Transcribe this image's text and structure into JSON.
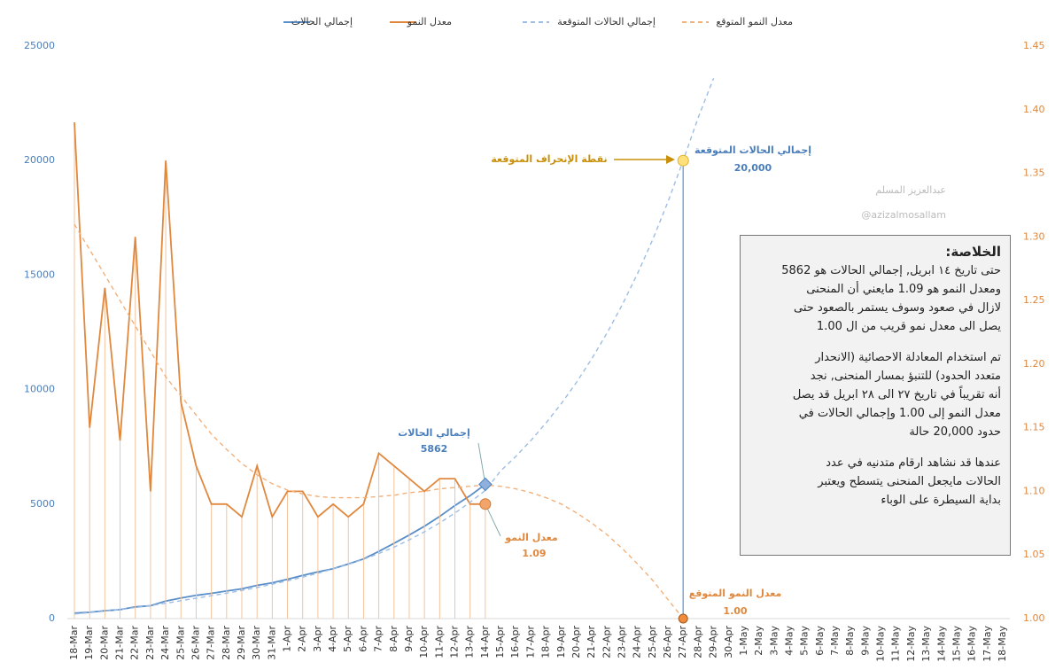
{
  "chart_data": {
    "type": "line",
    "legend": [
      "إجمالي الحالات",
      "معدل النمو",
      "إجمالي الحالات المتوقعة",
      "معدل النمو المتوقع"
    ],
    "categories": [
      "18-Mar",
      "19-Mar",
      "20-Mar",
      "21-Mar",
      "22-Mar",
      "23-Mar",
      "24-Mar",
      "25-Mar",
      "26-Mar",
      "27-Mar",
      "28-Mar",
      "29-Mar",
      "30-Mar",
      "31-Mar",
      "1-Apr",
      "2-Apr",
      "3-Apr",
      "4-Apr",
      "5-Apr",
      "6-Apr",
      "7-Apr",
      "8-Apr",
      "9-Apr",
      "10-Apr",
      "11-Apr",
      "12-Apr",
      "13-Apr",
      "14-Apr",
      "15-Apr",
      "16-Apr",
      "17-Apr",
      "18-Apr",
      "19-Apr",
      "20-Apr",
      "21-Apr",
      "22-Apr",
      "23-Apr",
      "24-Apr",
      "25-Apr",
      "26-Apr",
      "27-Apr",
      "28-Apr",
      "29-Apr",
      "30-Apr",
      "1-May",
      "2-May",
      "3-May",
      "4-May",
      "5-May",
      "6-May",
      "7-May",
      "8-May",
      "9-May",
      "10-May",
      "11-May",
      "12-May",
      "13-May",
      "14-May",
      "15-May",
      "16-May",
      "17-May",
      "18-May"
    ],
    "series": [
      {
        "name": "إجمالي الحالات",
        "color": "#5b8fc9",
        "axis": "y",
        "dash": false,
        "values": [
          240,
          274,
          344,
          392,
          511,
          562,
          767,
          900,
          1012,
          1104,
          1203,
          1299,
          1453,
          1563,
          1720,
          1885,
          2039,
          2179,
          2385,
          2605,
          2932,
          3287,
          3651,
          4033,
          4462,
          4934,
          5369,
          5862,
          null,
          null,
          null,
          null,
          null,
          null,
          null,
          null,
          null,
          null,
          null,
          null,
          null,
          null,
          null,
          null,
          null,
          null,
          null,
          null,
          null,
          null,
          null,
          null,
          null,
          null,
          null,
          null,
          null,
          null,
          null,
          null,
          null,
          null
        ]
      },
      {
        "name": "معدل النمو",
        "color": "#e0883e",
        "axis": "y2",
        "dash": false,
        "drop_lines": true,
        "values": [
          1.39,
          1.15,
          1.26,
          1.14,
          1.3,
          1.1,
          1.36,
          1.17,
          1.12,
          1.09,
          1.09,
          1.08,
          1.12,
          1.08,
          1.1,
          1.1,
          1.08,
          1.09,
          1.08,
          1.09,
          1.13,
          1.12,
          1.11,
          1.1,
          1.11,
          1.11,
          1.09,
          1.09,
          null,
          null,
          null,
          null,
          null,
          null,
          null,
          null,
          null,
          null,
          null,
          null,
          null,
          null,
          null,
          null,
          null,
          null,
          null,
          null,
          null,
          null,
          null,
          null,
          null,
          null,
          null,
          null,
          null,
          null,
          null,
          null,
          null,
          null
        ]
      },
      {
        "name": "إجمالي الحالات المتوقعة",
        "color": "#9dbde4",
        "axis": "y",
        "dash": true,
        "values": [
          200,
          260,
          330,
          400,
          480,
          570,
          670,
          780,
          890,
          1000,
          1110,
          1230,
          1360,
          1500,
          1650,
          1810,
          1980,
          2170,
          2370,
          2590,
          2840,
          3120,
          3440,
          3790,
          4180,
          4610,
          5080,
          5600,
          6442,
          7080,
          7781,
          8551,
          9398,
          10328,
          11350,
          12474,
          13709,
          15066,
          16557,
          18196,
          20000,
          21900,
          23600,
          null,
          null,
          null,
          null,
          null,
          null,
          null,
          null,
          null,
          null,
          null,
          null,
          null,
          null,
          null,
          null,
          null,
          null,
          null
        ]
      },
      {
        "name": "معدل النمو المتوقع",
        "color": "#f2b07a",
        "axis": "y2",
        "dash": true,
        "values": [
          1.31,
          1.29,
          1.27,
          1.25,
          1.23,
          1.21,
          1.19,
          1.175,
          1.16,
          1.145,
          1.133,
          1.122,
          1.113,
          1.106,
          1.101,
          1.098,
          1.096,
          1.095,
          1.095,
          1.095,
          1.096,
          1.097,
          1.099,
          1.1,
          1.102,
          1.103,
          1.104,
          1.105,
          1.104,
          1.102,
          1.099,
          1.095,
          1.09,
          1.083,
          1.075,
          1.066,
          1.055,
          1.043,
          1.03,
          1.015,
          1.0,
          null,
          null,
          null,
          null,
          null,
          null,
          null,
          null,
          null,
          null,
          null,
          null,
          null,
          null,
          null,
          null,
          null,
          null,
          null,
          null,
          null
        ]
      }
    ],
    "ylim": [
      0,
      25000
    ],
    "yticks": [
      0,
      5000,
      10000,
      15000,
      20000,
      25000
    ],
    "y2lim": [
      1.0,
      1.45
    ],
    "y2ticks": [
      {
        "value": 1.0,
        "label": "1.00"
      },
      1.05,
      {
        "value": 1.1,
        "label": "1.10"
      },
      1.15,
      {
        "value": 1.2,
        "label": "1.20"
      },
      1.25,
      {
        "value": 1.3,
        "label": "1.30"
      },
      1.35,
      {
        "value": 1.4,
        "label": "1.40"
      },
      1.45
    ],
    "annotations": {
      "current_total_label": "إجمالي الحالات",
      "current_total_value": "5862",
      "current_rate_label": "معدل النمو",
      "current_rate_value": "1.09",
      "expected_total_label": "إجمالي الحالات المتوقعة",
      "expected_total_value": "20,000",
      "expected_rate_label": "معدل النمو المتوقع",
      "expected_rate_value": "1.00",
      "inflection": "نقطة الإنحراف المتوقعة"
    },
    "watermark": [
      "عبدالعزيز المسلم",
      "@azizalmosallam"
    ],
    "summary": {
      "title": "الخلاصة:",
      "paragraphs": [
        [
          "حتى تاريخ ١٤ ابريل, إجمالي الحالات هو 5862",
          "ومعدل النمو هو 1.09 مايعني أن المنحنى",
          "لازال في صعود وسوف يستمر بالصعود حتى",
          "يصل الى معدل نمو قريب من ال 1.00"
        ],
        [
          "تم استخدام المعادلة الاحصائية (الانحدار",
          "متعدد الحدود) للتنبؤ بمسار المنحنى, نجد",
          "أنه تقريباً في تاريخ ٢٧ الى ٢٨ ابريل قد يصل",
          "معدل النمو إلى 1.00 وإجمالي الحالات في",
          "حدود 20,000 حالة"
        ],
        [
          "عندها قد نشاهد ارقام متدنيه في عدد",
          "الحالات مايجعل المنحنى يتسطح ويعتبر",
          "بداية السيطرة على الوباء"
        ]
      ]
    }
  }
}
